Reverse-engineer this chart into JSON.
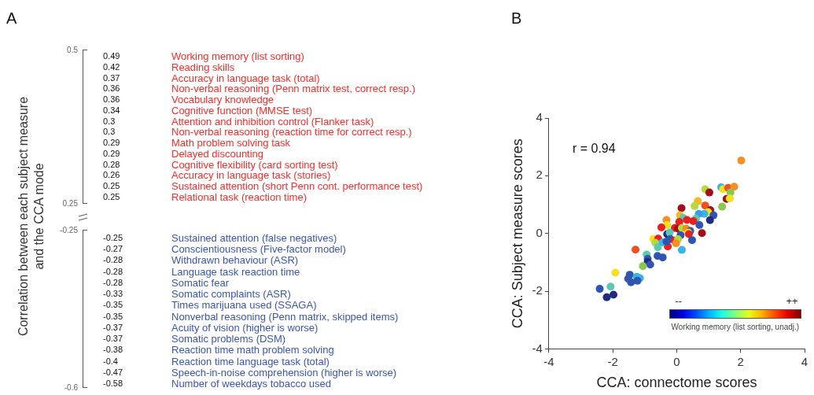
{
  "chart_data": [
    {
      "type": "other",
      "title": "A",
      "ylabel": "Correlation between each subject measure and the CCA mode",
      "categories": [
        "Working memory (list sorting)",
        "Reading skills",
        "Accuracy in language task (total)",
        "Non-verbal reasoning (Penn matrix test, correct resp.)",
        "Vocabulary knowledge",
        "Cognitive function (MMSE test)",
        "Attention and inhibition control (Flanker task)",
        "Non-verbal reasoning (reaction time for correct resp.)",
        "Math problem solving task",
        "Delayed discounting",
        "Cognitive flexibility (card sorting test)",
        "Accuracy in language task (stories)",
        "Sustained attention (short Penn cont. performance test)",
        "Relational task (reaction time)",
        "Sustained attention (false negatives)",
        "Conscientiousness (Five-factor model)",
        "Withdrawn behaviour (ASR)",
        "Language task reaction time",
        "Somatic fear",
        "Somatic complaints (ASR)",
        "Times marijuana used (SSAGA)",
        "Nonverbal reasoning (Penn matrix, skipped items)",
        "Acuity of vision (higher is worse)",
        "Somatic problems (DSM)",
        "Reaction time math problem solving",
        "Reaction time language task (total)",
        "Speech-in-noise comprehension (higher is worse)",
        "Number of weekdays tobacco used"
      ],
      "values": [
        0.49,
        0.42,
        0.37,
        0.36,
        0.36,
        0.34,
        0.3,
        0.3,
        0.29,
        0.29,
        0.28,
        0.26,
        0.25,
        0.25,
        -0.25,
        -0.27,
        -0.28,
        -0.28,
        -0.28,
        -0.33,
        -0.35,
        -0.35,
        -0.37,
        -0.37,
        -0.38,
        -0.4,
        -0.47,
        -0.58
      ],
      "colors": [
        "#ff2a2a",
        "#ff2a2a",
        "#ff2a2a",
        "#ff2a2a",
        "#ff2a2a",
        "#ff2a2a",
        "#ff2a2a",
        "#ff2a2a",
        "#ff2a2a",
        "#ff2a2a",
        "#ff2a2a",
        "#ff2a2a",
        "#ff2a2a",
        "#ff2a2a",
        "#3a55b4",
        "#3a55b4",
        "#3a55b4",
        "#3a55b4",
        "#3a55b4",
        "#3a55b4",
        "#3a55b4",
        "#3a55b4",
        "#3a55b4",
        "#3a55b4",
        "#3a55b4",
        "#3a55b4",
        "#3a55b4",
        "#3a55b4"
      ],
      "data_labels": true,
      "annotations": [
        "0.5",
        "0.25",
        "-0.25",
        "-0.6"
      ]
    },
    {
      "type": "scatter",
      "title": "B",
      "xlabel": "CCA: connectome scores",
      "ylabel": "CCA: Subject measure scores",
      "clabel": "Working memory (list sorting, unadj.)",
      "annotations": [
        "r = 0.94",
        "--",
        "++"
      ],
      "marker": "circle",
      "xlim": [
        -4,
        4
      ],
      "xticks": [
        -4,
        -2,
        0,
        2,
        4
      ],
      "ylim": [
        -4,
        4
      ],
      "yticks": [
        -4,
        -2,
        0,
        2,
        4
      ],
      "x": [
        2.02,
        0.89,
        1.02,
        1.39,
        1.45,
        1.61,
        1.8,
        1.68,
        1.56,
        1.66,
        1.42,
        0.66,
        0.56,
        0.89,
        0.15,
        1.05,
        0.98,
        0.86,
        0.69,
        1.15,
        1.04,
        0.6,
        0.52,
        0.71,
        0.1,
        0.2,
        -0.32,
        0.32,
        0.08,
        -0.3,
        -0.48,
        -0.06,
        0.04,
        0.16,
        0.3,
        0.42,
        0.36,
        0.38,
        -0.3,
        -0.22,
        0.79,
        0.12,
        0.48,
        -0.73,
        -0.58,
        -0.2,
        -0.06,
        0.04,
        -0.02,
        -0.28,
        -0.67,
        -0.59,
        -0.44,
        -0.32,
        0.16,
        -1.29,
        -0.94,
        -0.91,
        -0.6,
        -0.44,
        -0.91,
        -0.83,
        -1.06,
        -1.92,
        -1.47,
        -1.25,
        -1.15,
        -1.52,
        -1.43,
        -1.23,
        -2.41,
        -2.07,
        -2.19,
        -1.98
      ],
      "values": [
        2.53,
        1.53,
        1.42,
        1.6,
        1.53,
        1.58,
        1.62,
        1.42,
        1.2,
        1.21,
        0.93,
        1.12,
        0.95,
        0.97,
        0.88,
        0.81,
        0.74,
        0.68,
        0.68,
        0.63,
        0.46,
        0.51,
        0.43,
        0.29,
        0.63,
        0.54,
        0.47,
        0.47,
        0.4,
        0.29,
        0.21,
        0.19,
        0.17,
        0.19,
        0.17,
        0.09,
        0.03,
        -0.02,
        -0.02,
        0.03,
        0.01,
        -0.06,
        -0.23,
        -0.19,
        -0.18,
        -0.19,
        -0.25,
        -0.2,
        -0.34,
        -0.45,
        -0.32,
        -0.48,
        -0.31,
        -0.28,
        -0.57,
        -0.56,
        -0.73,
        -0.88,
        -0.78,
        -0.83,
        -0.99,
        -1.08,
        -1.13,
        -1.36,
        -1.43,
        -1.5,
        -1.55,
        -1.57,
        -1.69,
        -1.64,
        -1.92,
        -1.84,
        -2.21,
        -2.12
      ],
      "colors": [
        "#f59020",
        "#b8d840",
        "#a01018",
        "#3ab4e8",
        "#f5e020",
        "#f05020",
        "#f59020",
        "#8cc850",
        "#a01018",
        "#f5e020",
        "#8cc850",
        "#f5b820",
        "#b8d840",
        "#f05020",
        "#a01018",
        "#a01018",
        "#f5e020",
        "#3ab4e8",
        "#3a9ee0",
        "#2f55b0",
        "#1f2a80",
        "#5cc8b0",
        "#e82020",
        "#2f55b0",
        "#f5b820",
        "#5cc8b0",
        "#f59020",
        "#e82020",
        "#e82020",
        "#f5e020",
        "#e82020",
        "#e82020",
        "#a01018",
        "#b8d840",
        "#f59020",
        "#2f55b0",
        "#f5e020",
        "#e82020",
        "#1f2a80",
        "#5cc8b0",
        "#a01018",
        "#2f55b0",
        "#2f55b0",
        "#f5e020",
        "#e82020",
        "#2f55b0",
        "#e82020",
        "#b8d840",
        "#f59020",
        "#e82020",
        "#b8d840",
        "#5cc8b0",
        "#3ab4e8",
        "#2f55b0",
        "#3ab4e8",
        "#f05020",
        "#5cc8b0",
        "#2f55b0",
        "#2f55b0",
        "#2f55b0",
        "#1f2a80",
        "#2f55b0",
        "#8cc850",
        "#f5e020",
        "#2f55b0",
        "#3ab4e8",
        "#3ab4e8",
        "#2f55b0",
        "#2f55b0",
        "#2f55b0",
        "#2f55b0",
        "#5cc8b0",
        "#1f2a80",
        "#1f2a80"
      ]
    }
  ]
}
